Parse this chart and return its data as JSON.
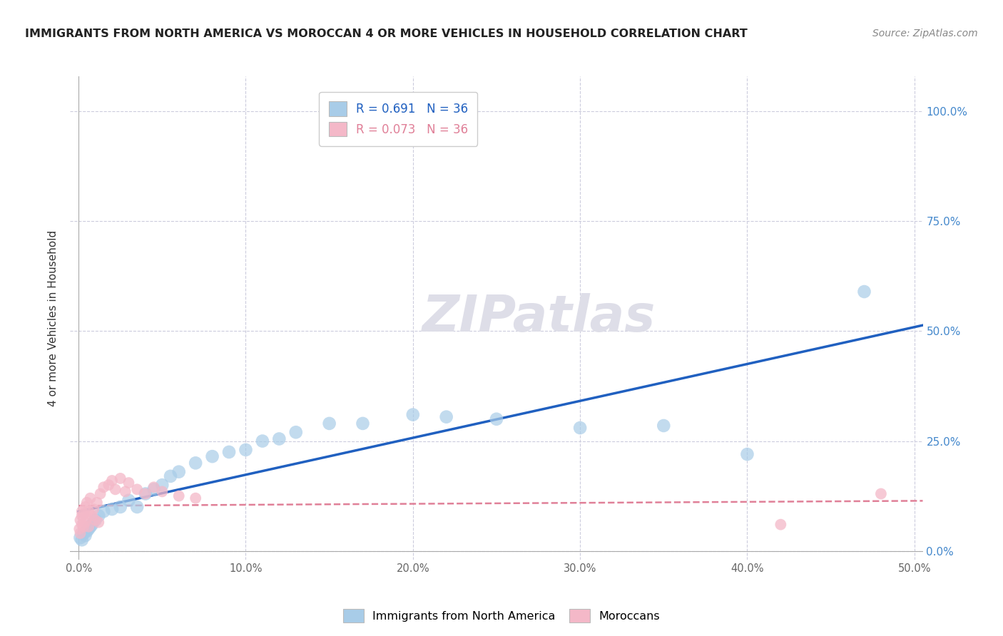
{
  "title": "IMMIGRANTS FROM NORTH AMERICA VS MOROCCAN 4 OR MORE VEHICLES IN HOUSEHOLD CORRELATION CHART",
  "source": "Source: ZipAtlas.com",
  "ylabel": "4 or more Vehicles in Household",
  "R_blue": 0.691,
  "R_pink": 0.073,
  "N": 36,
  "blue_color": "#a8cce8",
  "pink_color": "#f4b8c8",
  "line_blue": "#2060c0",
  "line_pink": "#e08098",
  "watermark_color": "#d8d8e8",
  "legend_label_blue": "Immigrants from North America",
  "legend_label_pink": "Moroccans",
  "blue_x": [
    0.001,
    0.002,
    0.003,
    0.004,
    0.005,
    0.006,
    0.007,
    0.008,
    0.01,
    0.012,
    0.015,
    0.02,
    0.025,
    0.03,
    0.035,
    0.04,
    0.045,
    0.05,
    0.055,
    0.06,
    0.07,
    0.08,
    0.09,
    0.1,
    0.11,
    0.12,
    0.13,
    0.15,
    0.17,
    0.2,
    0.22,
    0.25,
    0.3,
    0.35,
    0.4,
    0.47
  ],
  "blue_y": [
    0.03,
    0.025,
    0.04,
    0.035,
    0.045,
    0.05,
    0.055,
    0.06,
    0.07,
    0.08,
    0.09,
    0.095,
    0.1,
    0.115,
    0.1,
    0.13,
    0.14,
    0.15,
    0.17,
    0.18,
    0.2,
    0.215,
    0.225,
    0.23,
    0.25,
    0.255,
    0.27,
    0.29,
    0.29,
    0.31,
    0.305,
    0.3,
    0.28,
    0.285,
    0.22,
    0.59
  ],
  "pink_x": [
    0.0005,
    0.001,
    0.001,
    0.002,
    0.002,
    0.002,
    0.003,
    0.003,
    0.004,
    0.004,
    0.005,
    0.005,
    0.006,
    0.006,
    0.007,
    0.008,
    0.009,
    0.01,
    0.011,
    0.012,
    0.013,
    0.015,
    0.018,
    0.02,
    0.022,
    0.025,
    0.028,
    0.03,
    0.035,
    0.04,
    0.045,
    0.05,
    0.06,
    0.07,
    0.42,
    0.48
  ],
  "pink_y": [
    0.05,
    0.04,
    0.07,
    0.06,
    0.08,
    0.09,
    0.055,
    0.085,
    0.065,
    0.1,
    0.075,
    0.11,
    0.055,
    0.09,
    0.12,
    0.08,
    0.095,
    0.07,
    0.11,
    0.065,
    0.13,
    0.145,
    0.15,
    0.16,
    0.14,
    0.165,
    0.135,
    0.155,
    0.14,
    0.13,
    0.145,
    0.135,
    0.125,
    0.12,
    0.06,
    0.13
  ],
  "xlim": [
    -0.005,
    0.505
  ],
  "ylim": [
    -0.02,
    1.08
  ],
  "xticks": [
    0.0,
    0.1,
    0.2,
    0.3,
    0.4,
    0.5
  ],
  "xtick_labels": [
    "0.0%",
    "10.0%",
    "20.0%",
    "30.0%",
    "40.0%",
    "50.0%"
  ],
  "yticks": [
    0.0,
    0.25,
    0.5,
    0.75,
    1.0
  ],
  "ytick_labels": [
    "0.0%",
    "25.0%",
    "50.0%",
    "75.0%",
    "100.0%"
  ],
  "tick_color": "#4488cc",
  "grid_color": "#ccccdd",
  "title_color": "#222222",
  "source_color": "#888888",
  "ylabel_color": "#333333"
}
